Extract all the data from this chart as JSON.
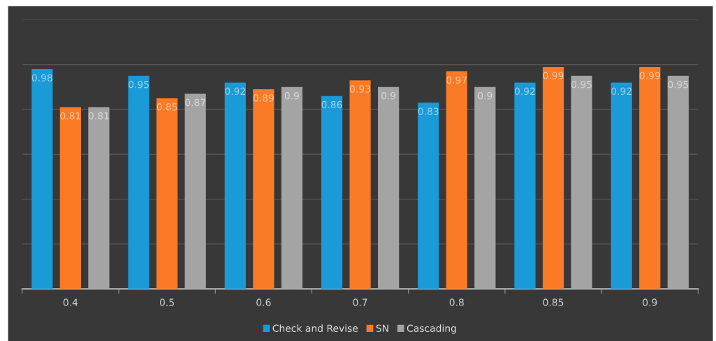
{
  "chart_data": {
    "type": "bar",
    "categories": [
      "0.4",
      "0.5",
      "0.6",
      "0.7",
      "0.8",
      "0.85",
      "0.9"
    ],
    "series": [
      {
        "name": "Check and Revise",
        "color": "#1a9ad6",
        "values": [
          0.98,
          0.95,
          0.92,
          0.86,
          0.83,
          0.92,
          0.92
        ]
      },
      {
        "name": "SN",
        "color": "#fb7a25",
        "values": [
          0.81,
          0.85,
          0.89,
          0.93,
          0.97,
          0.99,
          0.99
        ]
      },
      {
        "name": "Cascading",
        "color": "#a4a4a4",
        "values": [
          0.81,
          0.87,
          0.9,
          0.9,
          0.9,
          0.95,
          0.95
        ]
      }
    ],
    "ylim": [
      0,
      1.2
    ],
    "yticks": [
      {
        "value": 0.2,
        "label": null
      },
      {
        "value": 0.4,
        "label": null
      },
      {
        "value": 0.6,
        "label": null
      },
      {
        "value": 0.8,
        "label": null
      },
      {
        "value": 1.0,
        "label": null
      },
      {
        "value": 1.2,
        "label": null
      }
    ],
    "tick_labels": "x",
    "grid": "y",
    "legend": "bottom",
    "data_labels": true
  }
}
